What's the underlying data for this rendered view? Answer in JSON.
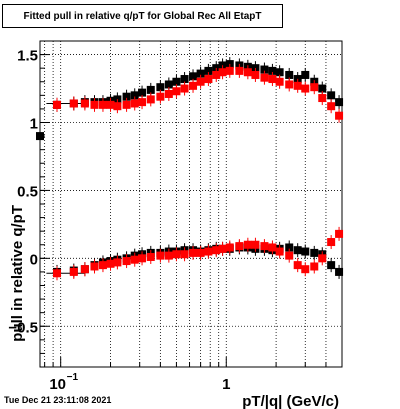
{
  "chart_data": {
    "type": "scatter",
    "title": "Fitted pull in relative q/pT for Global Rec All EtapT",
    "xlabel": "pT/|q| (GeV/c)",
    "ylabel": "pull in relative q/pT",
    "xscale": "log",
    "xlim": [
      0.075,
      5.0
    ],
    "ylim": [
      -0.8,
      1.6
    ],
    "grid": true,
    "x_ticks": [
      {
        "value": 0.1,
        "label": "10",
        "exp": "−1"
      },
      {
        "value": 1.0,
        "label": "1"
      }
    ],
    "y_ticks": [
      {
        "value": -0.5,
        "label": "−0.5"
      },
      {
        "value": 0.0,
        "label": "0"
      },
      {
        "value": 0.5,
        "label": "0.5"
      },
      {
        "value": 1.0,
        "label": "1"
      },
      {
        "value": 1.5,
        "label": "1.5"
      }
    ],
    "series": [
      {
        "group": "width",
        "color": "#000000",
        "x": [
          0.075,
          0.095,
          0.12,
          0.14,
          0.16,
          0.18,
          0.2,
          0.22,
          0.25,
          0.28,
          0.31,
          0.35,
          0.4,
          0.45,
          0.5,
          0.56,
          0.63,
          0.7,
          0.78,
          0.87,
          0.95,
          1.05,
          1.2,
          1.35,
          1.5,
          1.7,
          1.9,
          2.1,
          2.4,
          2.7,
          3.0,
          3.4,
          3.8,
          4.3,
          4.8
        ],
        "y": [
          0.9,
          1.13,
          1.14,
          1.15,
          1.15,
          1.15,
          1.16,
          1.17,
          1.19,
          1.2,
          1.22,
          1.24,
          1.26,
          1.28,
          1.3,
          1.32,
          1.34,
          1.36,
          1.38,
          1.4,
          1.42,
          1.43,
          1.42,
          1.41,
          1.4,
          1.39,
          1.38,
          1.37,
          1.35,
          1.32,
          1.35,
          1.3,
          1.25,
          1.2,
          1.15
        ]
      },
      {
        "group": "width",
        "color": "#ff0000",
        "x": [
          0.095,
          0.12,
          0.14,
          0.16,
          0.18,
          0.2,
          0.22,
          0.25,
          0.28,
          0.31,
          0.35,
          0.4,
          0.45,
          0.5,
          0.56,
          0.63,
          0.7,
          0.78,
          0.87,
          0.95,
          1.05,
          1.2,
          1.35,
          1.5,
          1.7,
          1.9,
          2.1,
          2.4,
          2.7,
          3.0,
          3.4,
          3.8,
          4.3,
          4.8
        ],
        "y": [
          1.13,
          1.14,
          1.14,
          1.13,
          1.13,
          1.13,
          1.12,
          1.13,
          1.14,
          1.15,
          1.17,
          1.19,
          1.21,
          1.23,
          1.25,
          1.27,
          1.3,
          1.32,
          1.35,
          1.37,
          1.38,
          1.38,
          1.37,
          1.35,
          1.33,
          1.32,
          1.3,
          1.28,
          1.27,
          1.25,
          1.26,
          1.18,
          1.12,
          1.05
        ]
      },
      {
        "group": "mean",
        "color": "#000000",
        "x": [
          0.095,
          0.12,
          0.14,
          0.16,
          0.18,
          0.2,
          0.22,
          0.25,
          0.28,
          0.31,
          0.35,
          0.4,
          0.45,
          0.5,
          0.56,
          0.63,
          0.7,
          0.78,
          0.87,
          0.95,
          1.05,
          1.2,
          1.35,
          1.5,
          1.7,
          1.9,
          2.1,
          2.4,
          2.7,
          3.0,
          3.4,
          3.8,
          4.3,
          4.8
        ],
        "y": [
          -0.1,
          -0.09,
          -0.08,
          -0.05,
          -0.03,
          -0.02,
          -0.01,
          0.0,
          0.02,
          0.03,
          0.04,
          0.04,
          0.05,
          0.05,
          0.06,
          0.06,
          0.05,
          0.06,
          0.07,
          0.07,
          0.07,
          0.08,
          0.08,
          0.07,
          0.07,
          0.06,
          0.07,
          0.08,
          0.06,
          0.05,
          0.04,
          0.03,
          -0.05,
          -0.1
        ]
      },
      {
        "group": "mean",
        "color": "#ff0000",
        "x": [
          0.095,
          0.12,
          0.14,
          0.16,
          0.18,
          0.2,
          0.22,
          0.25,
          0.28,
          0.31,
          0.35,
          0.4,
          0.45,
          0.5,
          0.56,
          0.63,
          0.7,
          0.78,
          0.87,
          0.95,
          1.05,
          1.2,
          1.35,
          1.5,
          1.7,
          1.9,
          2.1,
          2.4,
          2.7,
          3.0,
          3.4,
          3.8,
          4.3,
          4.8
        ],
        "y": [
          -0.11,
          -0.1,
          -0.08,
          -0.06,
          -0.05,
          -0.04,
          -0.03,
          -0.02,
          -0.01,
          0.0,
          0.01,
          0.02,
          0.02,
          0.03,
          0.03,
          0.04,
          0.04,
          0.05,
          0.06,
          0.07,
          0.08,
          0.09,
          0.1,
          0.1,
          0.09,
          0.08,
          0.05,
          0.02,
          -0.05,
          -0.08,
          -0.06,
          0.0,
          0.12,
          0.18
        ]
      }
    ],
    "fit_lines": [
      {
        "y": 1.14,
        "x_from": 0.082,
        "x_to": 0.14
      },
      {
        "y": -0.11,
        "x_from": 0.082,
        "x_to": 0.14
      }
    ]
  },
  "footer": {
    "timestamp": "Tue Dec 21 23:11:08 2021"
  }
}
